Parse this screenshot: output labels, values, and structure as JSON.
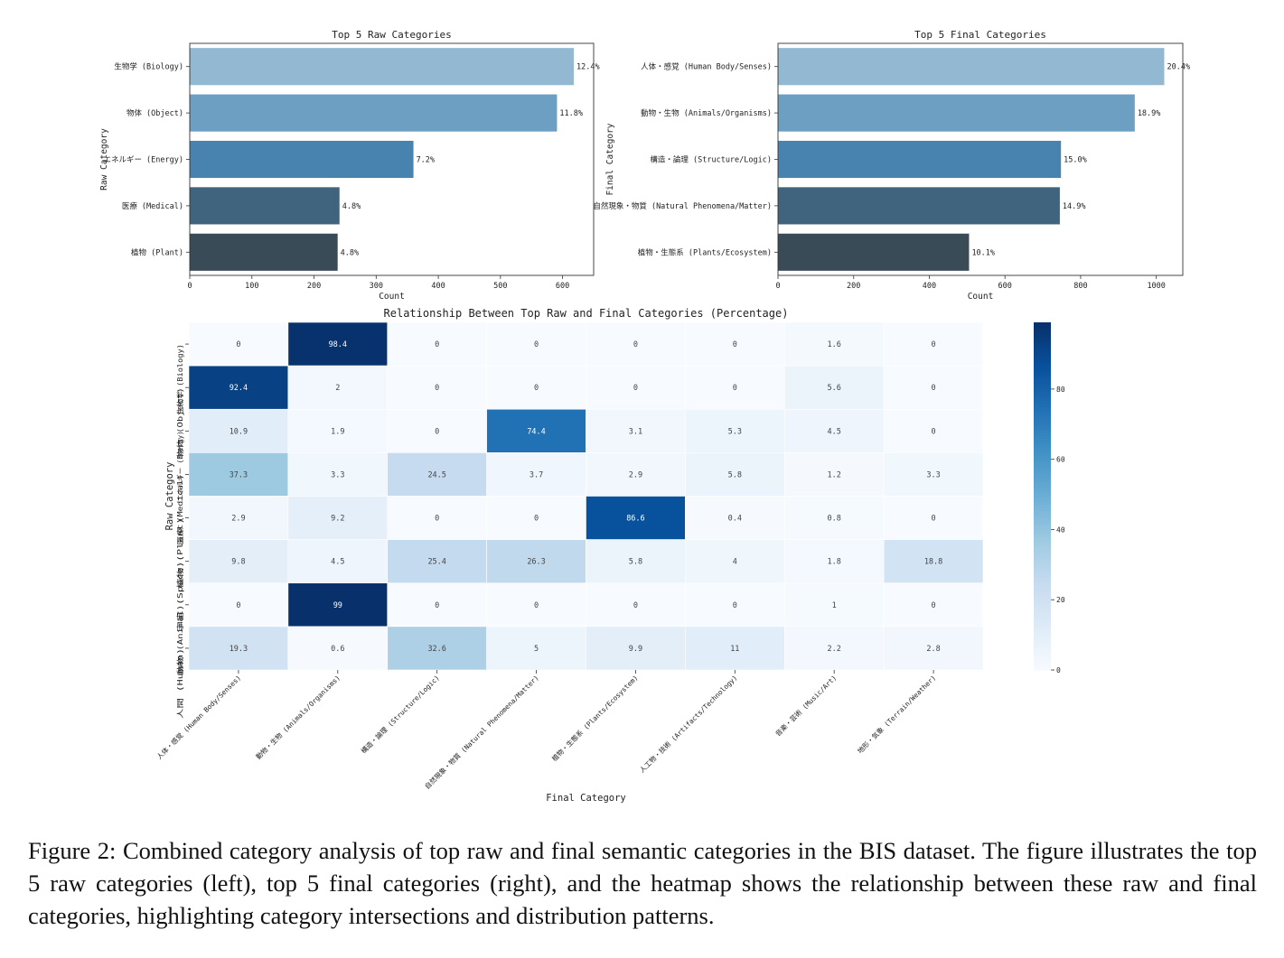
{
  "chart_data": [
    {
      "type": "bar",
      "orientation": "horizontal",
      "title": "Top 5 Raw Categories",
      "xlabel": "Count",
      "ylabel": "Raw Category",
      "categories": [
        "生物学 (Biology)",
        "物体 (Object)",
        "エネルギー (Energy)",
        "医療 (Medical)",
        "植物 (Plant)"
      ],
      "values": [
        618,
        591,
        360,
        241,
        238
      ],
      "bar_labels": [
        "12.4%",
        "11.8%",
        "7.2%",
        "4.8%",
        "4.8%"
      ],
      "xlim": [
        0,
        650
      ],
      "xticks": [
        0,
        100,
        200,
        300,
        400,
        500,
        600
      ],
      "colors": [
        "#92b8d2",
        "#6c9fc2",
        "#4882ae",
        "#40647e",
        "#3a4b58"
      ]
    },
    {
      "type": "bar",
      "orientation": "horizontal",
      "title": "Top 5 Final Categories",
      "xlabel": "Count",
      "ylabel": "Final Category",
      "categories": [
        "人体・感覚 (Human Body/Senses)",
        "動物・生物 (Animals/Organisms)",
        "構造・論理 (Structure/Logic)",
        "自然現象・物質 (Natural Phenomena/Matter)",
        "植物・生態系 (Plants/Ecosystem)"
      ],
      "values": [
        1021,
        943,
        748,
        745,
        505
      ],
      "bar_labels": [
        "20.4%",
        "18.9%",
        "15.0%",
        "14.9%",
        "10.1%"
      ],
      "xlim": [
        0,
        1070
      ],
      "xticks": [
        0,
        200,
        400,
        600,
        800,
        1000
      ],
      "colors": [
        "#92b8d2",
        "#6c9fc2",
        "#4882ae",
        "#40647e",
        "#3a4b58"
      ]
    },
    {
      "type": "heatmap",
      "title": "Relationship Between Top Raw and Final Categories (Percentage)",
      "xlabel": "Final Category",
      "ylabel": "Raw Category",
      "rows": [
        "生物学 (Biology)",
        "物体 (Object)",
        "エネルギー (Energy)",
        "医療 (Medical)",
        "植物 (Plant)",
        "宇宙 (Space)",
        "動物 (Animal)",
        "人間 (Human)"
      ],
      "columns": [
        "人体・感覚 (Human Body/Senses)",
        "動物・生物 (Animals/Organisms)",
        "構造・論理 (Structure/Logic)",
        "自然現象・物質 (Natural Phenomena/Matter)",
        "植物・生態系 (Plants/Ecosystem)",
        "人工物・技術 (Artifacts/Technology)",
        "音楽・芸術 (Music/Art)",
        "地形・気象 (Terrain/Weather)"
      ],
      "values": [
        [
          0.0,
          98.4,
          0.0,
          0.0,
          0.0,
          0.0,
          1.6,
          0.0
        ],
        [
          92.4,
          2.0,
          0.0,
          0.0,
          0.0,
          0.0,
          5.6,
          0.0
        ],
        [
          10.9,
          1.9,
          0.0,
          74.4,
          3.1,
          5.3,
          4.5,
          0.0
        ],
        [
          37.3,
          3.3,
          24.5,
          3.7,
          2.9,
          5.8,
          1.2,
          3.3
        ],
        [
          2.9,
          9.2,
          0.0,
          0.0,
          86.6,
          0.4,
          0.8,
          0.0
        ],
        [
          9.8,
          4.5,
          25.4,
          26.3,
          5.8,
          4.0,
          1.8,
          18.8
        ],
        [
          0.0,
          99.0,
          0.0,
          0.0,
          0.0,
          0.0,
          1.0,
          0.0
        ],
        [
          19.3,
          0.6,
          32.6,
          5.0,
          9.9,
          11.0,
          2.2,
          2.8
        ]
      ],
      "colormap": "Blues",
      "color_range": [
        0,
        99
      ],
      "colorbar_ticks": [
        0,
        20,
        40,
        60,
        80
      ]
    }
  ],
  "caption": "Figure 2: Combined category analysis of top raw and final semantic categories in the BIS dataset. The figure illustrates the top 5 raw categories (left), top 5 final categories (right), and the heatmap shows the relationship between these raw and final categories, highlighting category intersections and distribution patterns."
}
